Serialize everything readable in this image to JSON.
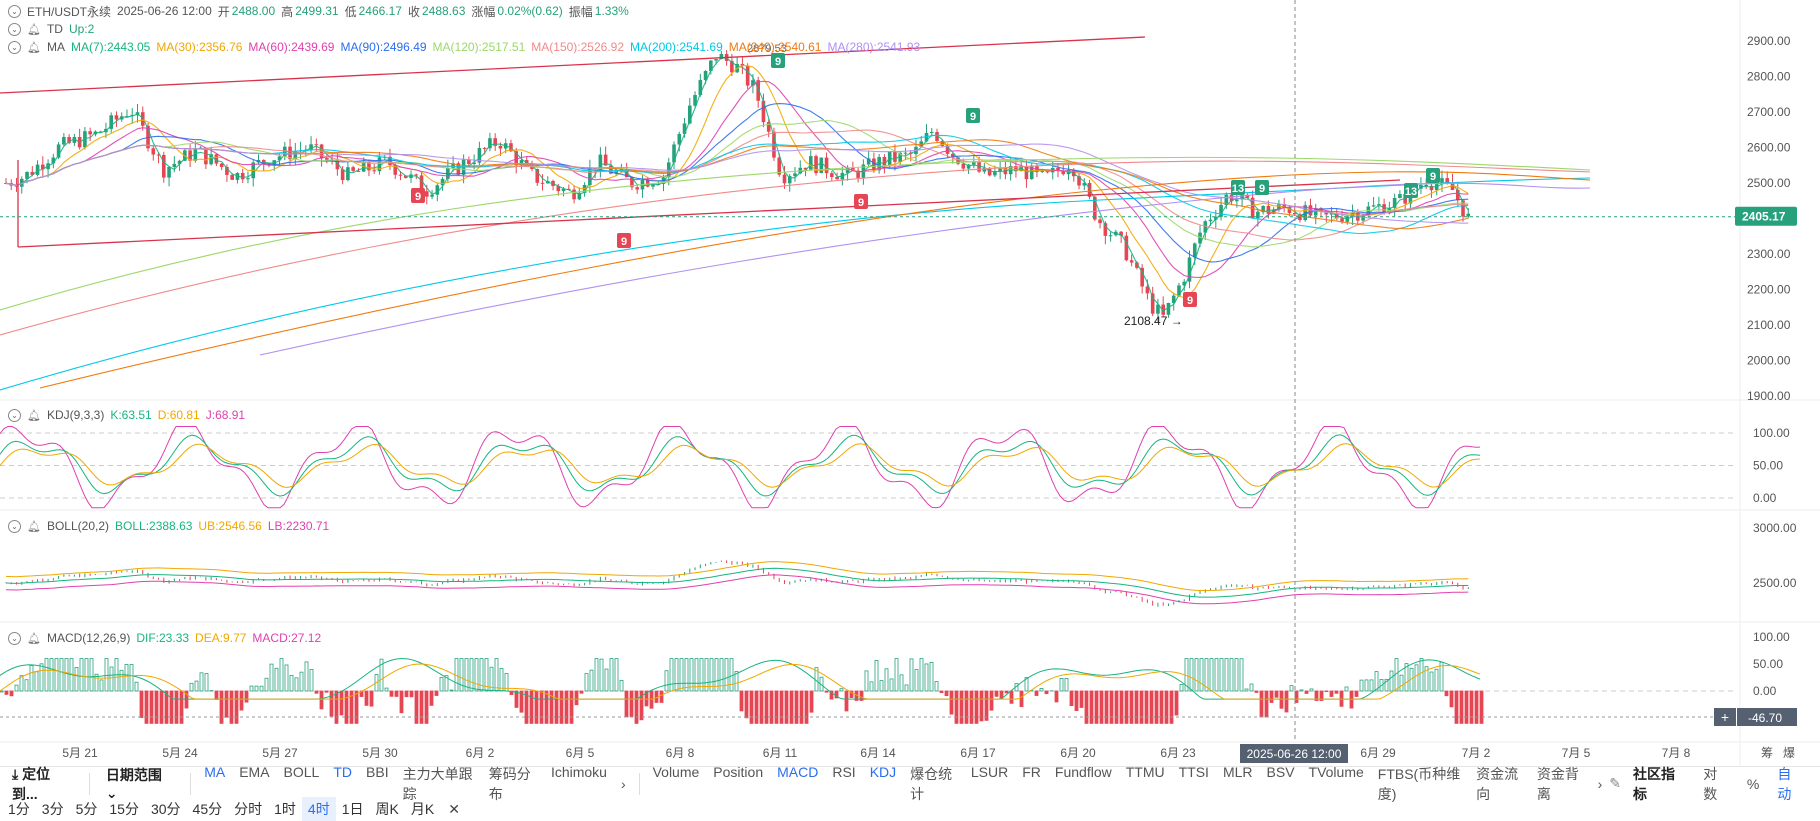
{
  "header": {
    "symbol": "ETH/USDT永续",
    "datetime": "2025-06-26 12:00",
    "open_label": "开",
    "open": "2488.00",
    "high_label": "高",
    "high": "2499.31",
    "low_label": "低",
    "low": "2466.17",
    "close_label": "收",
    "close": "2488.63",
    "change_label": "涨幅",
    "change": "0.02%(0.62)",
    "amp_label": "振幅",
    "amp": "1.33%"
  },
  "td": {
    "label": "TD",
    "value": "Up:2"
  },
  "ma": {
    "label": "MA",
    "items": [
      {
        "text": "MA(7):2443.05",
        "color": "#16b57f"
      },
      {
        "text": "MA(30):2356.76",
        "color": "#f0a800"
      },
      {
        "text": "MA(60):2439.69",
        "color": "#e040b0"
      },
      {
        "text": "MA(90):2496.49",
        "color": "#2a6ef0"
      },
      {
        "text": "MA(120):2517.51",
        "color": "#9bd86a"
      },
      {
        "text": "MA(150):2526.92",
        "color": "#f08a8a"
      },
      {
        "text": "MA(200):2541.69",
        "color": "#00c8e8"
      },
      {
        "text": "MA(240):2540.61",
        "color": "#f07a10"
      },
      {
        "text": "MA(280):2541.93",
        "color": "#b090f0"
      }
    ]
  },
  "kdj": {
    "label": "KDJ(9,3,3)",
    "k": "K:63.51",
    "d": "D:60.81",
    "j": "J:68.91",
    "ticks": [
      "100.00",
      "50.00",
      "0.00"
    ]
  },
  "boll": {
    "label": "BOLL(20,2)",
    "mid": "BOLL:2388.63",
    "ub": "UB:2546.56",
    "lb": "LB:2230.71",
    "ticks": [
      "3000.00",
      "2500.00"
    ]
  },
  "macd": {
    "label": "MACD(12,26,9)",
    "dif": "DIF:23.33",
    "dea": "DEA:9.77",
    "macd": "MACD:27.12",
    "ticks": [
      "100.00",
      "50.00",
      "0.00"
    ],
    "current": "-46.70"
  },
  "main_axis": {
    "ticks": [
      "2900.00",
      "2800.00",
      "2700.00",
      "2600.00",
      "2500.00",
      "2300.00",
      "2200.00",
      "2100.00",
      "2000.00",
      "1900.00"
    ],
    "current_price": "2405.17"
  },
  "annotations": {
    "low_label": "2108.47",
    "high_label": "2879.53",
    "td_marks": [
      "9",
      "9",
      "9",
      "9",
      "9",
      "9",
      "13",
      "9",
      "13",
      "9"
    ]
  },
  "time_axis": {
    "labels": [
      "5月 21",
      "5月 24",
      "5月 27",
      "5月 30",
      "6月 2",
      "6月 5",
      "6月 8",
      "6月 11",
      "6月 14",
      "6月 17",
      "6月 20",
      "6月 23",
      "6月 29",
      "7月 2",
      "7月 5",
      "7月 8"
    ],
    "crosshair": "2025-06-26 12:00",
    "right_chars": [
      "筹",
      "爆"
    ]
  },
  "toolbar": {
    "locate": "定位到...",
    "date_range": "日期范围",
    "main_indicators": [
      {
        "label": "MA",
        "active": true
      },
      {
        "label": "EMA",
        "active": false
      },
      {
        "label": "BOLL",
        "active": false
      },
      {
        "label": "TD",
        "active": true
      },
      {
        "label": "BBI",
        "active": false
      },
      {
        "label": "主力大单跟踪",
        "active": false
      },
      {
        "label": "筹码分布",
        "active": false
      },
      {
        "label": "Ichimoku",
        "active": false
      }
    ],
    "sub_indicators": [
      {
        "label": "Volume",
        "active": false
      },
      {
        "label": "Position",
        "active": false
      },
      {
        "label": "MACD",
        "active": true
      },
      {
        "label": "RSI",
        "active": false
      },
      {
        "label": "KDJ",
        "active": true
      },
      {
        "label": "爆仓统计",
        "active": false
      },
      {
        "label": "LSUR",
        "active": false
      },
      {
        "label": "FR",
        "active": false
      },
      {
        "label": "Fundflow",
        "active": false
      },
      {
        "label": "TTMU",
        "active": false
      },
      {
        "label": "TTSI",
        "active": false
      },
      {
        "label": "MLR",
        "active": false
      },
      {
        "label": "BSV",
        "active": false
      },
      {
        "label": "TVolume",
        "active": false
      },
      {
        "label": "FTBS(币种维度)",
        "active": false
      },
      {
        "label": "资金流向",
        "active": false
      },
      {
        "label": "资金背离",
        "active": false
      }
    ],
    "community": "社区指标",
    "log": "对数",
    "percent": "%",
    "auto": "自动"
  },
  "intervals": [
    {
      "label": "1分",
      "active": false
    },
    {
      "label": "3分",
      "active": false
    },
    {
      "label": "5分",
      "active": false
    },
    {
      "label": "15分",
      "active": false
    },
    {
      "label": "30分",
      "active": false
    },
    {
      "label": "45分",
      "active": false
    },
    {
      "label": "分时",
      "active": false
    },
    {
      "label": "1时",
      "active": false
    },
    {
      "label": "4时",
      "active": true
    },
    {
      "label": "1日",
      "active": false
    },
    {
      "label": "周K",
      "active": false
    },
    {
      "label": "月K",
      "active": false
    }
  ],
  "colors": {
    "up": "#26a17b",
    "down": "#e64553",
    "trendline": "#d8334a"
  }
}
